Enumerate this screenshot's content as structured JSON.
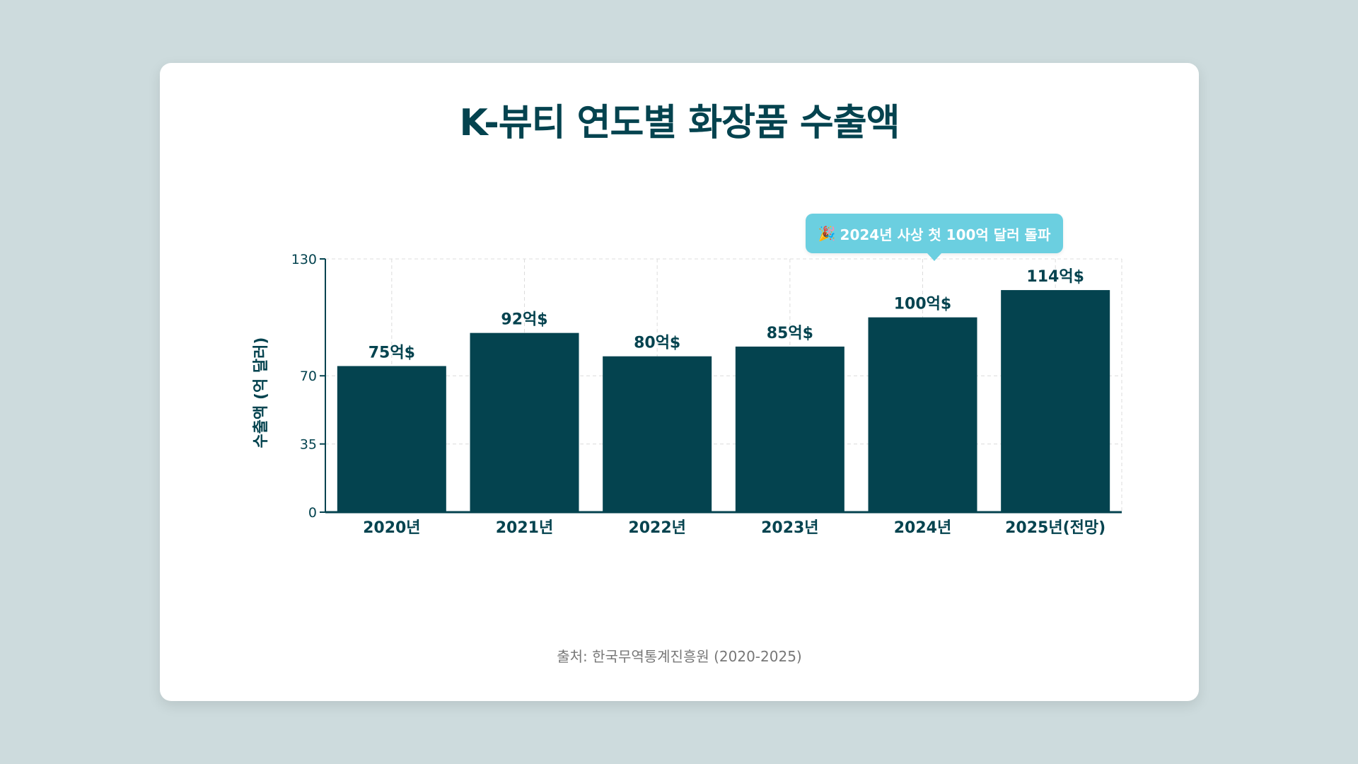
{
  "chart_data": {
    "type": "bar",
    "title": "K-뷰티 연도별 화장품 수출액",
    "categories": [
      "2020년",
      "2021년",
      "2022년",
      "2023년",
      "2024년",
      "2025년(전망)"
    ],
    "values": [
      75,
      92,
      80,
      85,
      100,
      114
    ],
    "value_labels": [
      "75억$",
      "92억$",
      "80억$",
      "85억$",
      "100억$",
      "114억$"
    ],
    "ylabel": "수출액 (억 달러)",
    "xlabel": "",
    "ylim": [
      0,
      130
    ],
    "yticks": [
      0,
      35,
      70,
      130
    ],
    "grid": true,
    "annotation": {
      "text": "2024년 사상 첫 100억 달러 돌파",
      "icon": "party-popper-icon",
      "target_category": "2024년"
    },
    "source": "출처: 한국무역통계진흥원 (2020-2025)",
    "colors": {
      "bar": "#04434f",
      "axis": "#04434f",
      "grid": "#dcdcdc",
      "annotation_bg": "#6bcfe0"
    }
  }
}
